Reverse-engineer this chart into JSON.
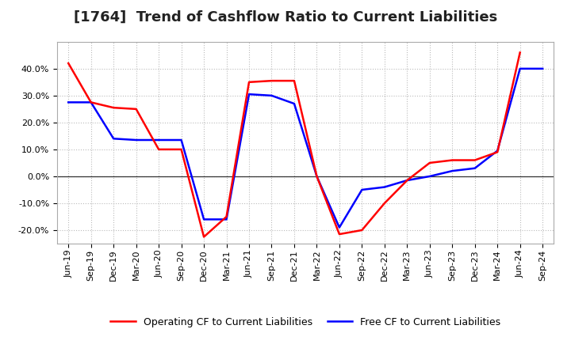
{
  "title": "[1764]  Trend of Cashflow Ratio to Current Liabilities",
  "x_labels": [
    "Jun-19",
    "Sep-19",
    "Dec-19",
    "Mar-20",
    "Jun-20",
    "Sep-20",
    "Dec-20",
    "Mar-21",
    "Jun-21",
    "Sep-21",
    "Dec-21",
    "Mar-22",
    "Jun-22",
    "Sep-22",
    "Dec-22",
    "Mar-23",
    "Jun-23",
    "Sep-23",
    "Dec-23",
    "Mar-24",
    "Jun-24",
    "Sep-24"
  ],
  "operating_cf": [
    42.0,
    27.5,
    25.5,
    25.0,
    10.0,
    10.0,
    -22.5,
    -15.0,
    35.0,
    35.5,
    35.5,
    0.0,
    -21.5,
    -20.0,
    -10.0,
    -1.5,
    5.0,
    6.0,
    6.0,
    9.0,
    46.0,
    null
  ],
  "free_cf": [
    27.5,
    27.5,
    14.0,
    13.5,
    13.5,
    13.5,
    -16.0,
    -16.0,
    30.5,
    30.0,
    27.0,
    0.0,
    -19.0,
    -5.0,
    -4.0,
    -1.5,
    0.0,
    2.0,
    3.0,
    9.5,
    40.0,
    40.0
  ],
  "ylim": [
    -25,
    50
  ],
  "yticks": [
    -20.0,
    -10.0,
    0.0,
    10.0,
    20.0,
    30.0,
    40.0
  ],
  "operating_color": "#ff0000",
  "free_color": "#0000ff",
  "background_color": "#ffffff",
  "grid_color": "#bbbbbb",
  "zero_line_color": "#333333",
  "legend_operating": "Operating CF to Current Liabilities",
  "legend_free": "Free CF to Current Liabilities",
  "title_fontsize": 13,
  "tick_fontsize": 8,
  "legend_fontsize": 9
}
